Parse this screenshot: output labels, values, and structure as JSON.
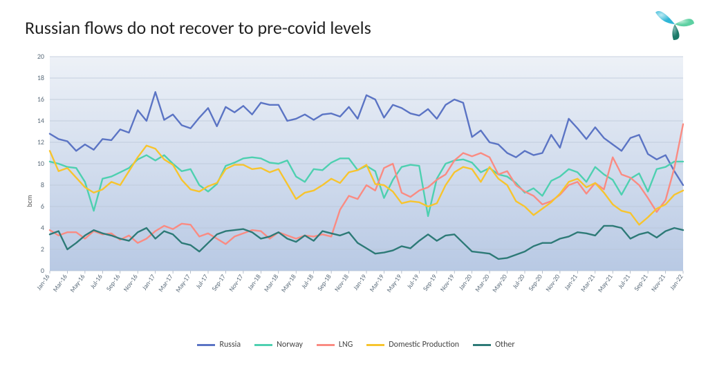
{
  "title": "Russian flows do not recover to pre-covid levels",
  "chart": {
    "type": "line",
    "ylabel": "bcm",
    "ylim": [
      0,
      20
    ],
    "ytick_step": 2,
    "background_top": "#edf1f7",
    "background_bottom": "#b8c9e4",
    "grid_color": "#b8c4d6",
    "title_fontsize": 26,
    "label_fontsize": 10,
    "line_width": 2.4,
    "x_labels": [
      "Jan-16",
      "Mar-16",
      "May-16",
      "Jul-16",
      "Sep-16",
      "Nov-16",
      "Jan-17",
      "Mar-17",
      "May-17",
      "Jul-17",
      "Sep-17",
      "Nov-17",
      "Jan-18",
      "Mar-18",
      "May-18",
      "Jul-18",
      "Sep-18",
      "Nov-18",
      "Jan-19",
      "Mar-19",
      "May-19",
      "Jul-19",
      "Sep-19",
      "Nov-19",
      "Jan-20",
      "Mar-20",
      "May-20",
      "Jul-20",
      "Sep-20",
      "Nov-20",
      "Jan-21",
      "Mar-21",
      "May-21",
      "Jul-21",
      "Sep-21",
      "Nov-21",
      "Jan-22"
    ],
    "series": [
      {
        "name": "Russia",
        "legend": "Russia",
        "color": "#5b74c4",
        "values": [
          12.8,
          12.3,
          12.1,
          11.2,
          11.8,
          11.3,
          12.3,
          12.2,
          13.2,
          12.9,
          15.0,
          14.0,
          16.7,
          14.1,
          14.6,
          13.6,
          13.3,
          14.3,
          15.2,
          13.5,
          15.3,
          14.8,
          15.4,
          14.6,
          15.7,
          15.5,
          15.5,
          14.0,
          14.2,
          14.6,
          14.1,
          14.6,
          14.7,
          14.4,
          15.3,
          14.2,
          16.4,
          16.0,
          14.3,
          15.5,
          15.2,
          14.7,
          14.5,
          15.1,
          14.2,
          15.5,
          16.0,
          15.7,
          12.5,
          13.1,
          12.0,
          11.8,
          11.0,
          10.6,
          11.2,
          10.8,
          11.0,
          12.7,
          11.5,
          14.2,
          13.3,
          12.3,
          13.4,
          12.4,
          11.8,
          11.2,
          12.4,
          12.7,
          10.9,
          10.4,
          10.8,
          9.3,
          8.0
        ]
      },
      {
        "name": "Norway",
        "legend": "Norway",
        "color": "#4ed0b0",
        "values": [
          10.2,
          10.0,
          9.7,
          9.6,
          8.3,
          5.6,
          8.6,
          8.8,
          9.2,
          9.6,
          10.4,
          10.8,
          10.3,
          10.8,
          10.0,
          9.3,
          9.5,
          8.0,
          7.4,
          8.1,
          9.8,
          10.1,
          10.5,
          10.6,
          10.5,
          10.1,
          10.0,
          10.3,
          8.8,
          8.3,
          9.5,
          9.4,
          10.1,
          10.5,
          10.5,
          9.4,
          9.8,
          9.3,
          6.8,
          8.5,
          9.7,
          9.9,
          9.8,
          5.1,
          8.6,
          10.0,
          10.3,
          10.4,
          10.1,
          9.2,
          9.6,
          9.0,
          8.8,
          8.2,
          7.3,
          7.7,
          7.0,
          8.4,
          8.8,
          9.5,
          9.2,
          8.3,
          9.7,
          9.0,
          8.5,
          7.1,
          8.6,
          9.1,
          7.4,
          9.5,
          9.7,
          10.2,
          10.2
        ]
      },
      {
        "name": "LNG",
        "legend": "LNG",
        "color": "#fa8b82",
        "values": [
          3.8,
          3.3,
          3.6,
          3.6,
          3.0,
          3.7,
          3.4,
          3.5,
          2.9,
          3.3,
          2.6,
          3.0,
          3.7,
          4.2,
          3.9,
          4.4,
          4.3,
          3.2,
          3.5,
          3.0,
          2.5,
          3.2,
          3.5,
          3.8,
          3.7,
          3.0,
          3.6,
          3.3,
          3.0,
          3.3,
          3.2,
          3.4,
          3.2,
          5.7,
          7.0,
          6.7,
          8.0,
          7.5,
          9.6,
          10.0,
          7.3,
          6.9,
          7.5,
          7.8,
          8.5,
          9.0,
          10.3,
          11.0,
          10.7,
          11.0,
          10.6,
          9.0,
          9.3,
          8.0,
          7.4,
          7.0,
          6.2,
          6.5,
          7.1,
          8.0,
          8.3,
          7.2,
          8.2,
          7.6,
          10.6,
          9.0,
          8.7,
          8.0,
          6.8,
          5.5,
          6.6,
          9.6,
          13.7
        ]
      },
      {
        "name": "Domestic Production",
        "legend": "Domestic Production",
        "color": "#f7c42e",
        "values": [
          11.2,
          9.3,
          9.6,
          8.7,
          7.8,
          7.3,
          7.6,
          8.3,
          8.0,
          9.3,
          10.6,
          11.7,
          11.4,
          10.4,
          9.9,
          8.5,
          7.6,
          7.4,
          7.9,
          8.2,
          9.5,
          9.9,
          9.9,
          9.5,
          9.6,
          9.2,
          9.5,
          8.1,
          6.7,
          7.3,
          7.5,
          8.0,
          8.6,
          8.2,
          9.2,
          9.4,
          9.9,
          8.1,
          8.0,
          7.4,
          6.3,
          6.5,
          6.4,
          6.0,
          6.3,
          8.0,
          9.2,
          9.7,
          9.5,
          8.3,
          9.7,
          8.6,
          8.0,
          6.5,
          6.0,
          5.2,
          5.8,
          6.4,
          7.2,
          8.3,
          8.6,
          7.8,
          8.2,
          7.3,
          6.2,
          5.6,
          5.4,
          4.3,
          5.0,
          5.8,
          6.2,
          7.1,
          7.5
        ]
      },
      {
        "name": "Other",
        "legend": "Other",
        "color": "#2d7a77",
        "values": [
          3.4,
          3.7,
          2.0,
          2.6,
          3.3,
          3.8,
          3.5,
          3.3,
          3.0,
          2.8,
          3.6,
          4.0,
          3.0,
          3.7,
          3.4,
          2.6,
          2.4,
          1.8,
          2.6,
          3.4,
          3.7,
          3.8,
          3.9,
          3.6,
          3.0,
          3.2,
          3.6,
          3.0,
          2.7,
          3.3,
          2.8,
          3.7,
          3.5,
          3.3,
          3.6,
          2.6,
          2.1,
          1.6,
          1.7,
          1.9,
          2.3,
          2.1,
          2.8,
          3.4,
          2.8,
          3.3,
          3.4,
          2.6,
          1.8,
          1.7,
          1.6,
          1.1,
          1.2,
          1.5,
          1.8,
          2.3,
          2.6,
          2.6,
          3.0,
          3.2,
          3.6,
          3.5,
          3.3,
          4.2,
          4.2,
          4.0,
          3.0,
          3.4,
          3.6,
          3.1,
          3.7,
          4.0,
          3.8
        ]
      }
    ]
  },
  "logo_colors": {
    "a": "#2fb6d6",
    "b": "#5dd0a2",
    "c": "#1b7a68"
  }
}
